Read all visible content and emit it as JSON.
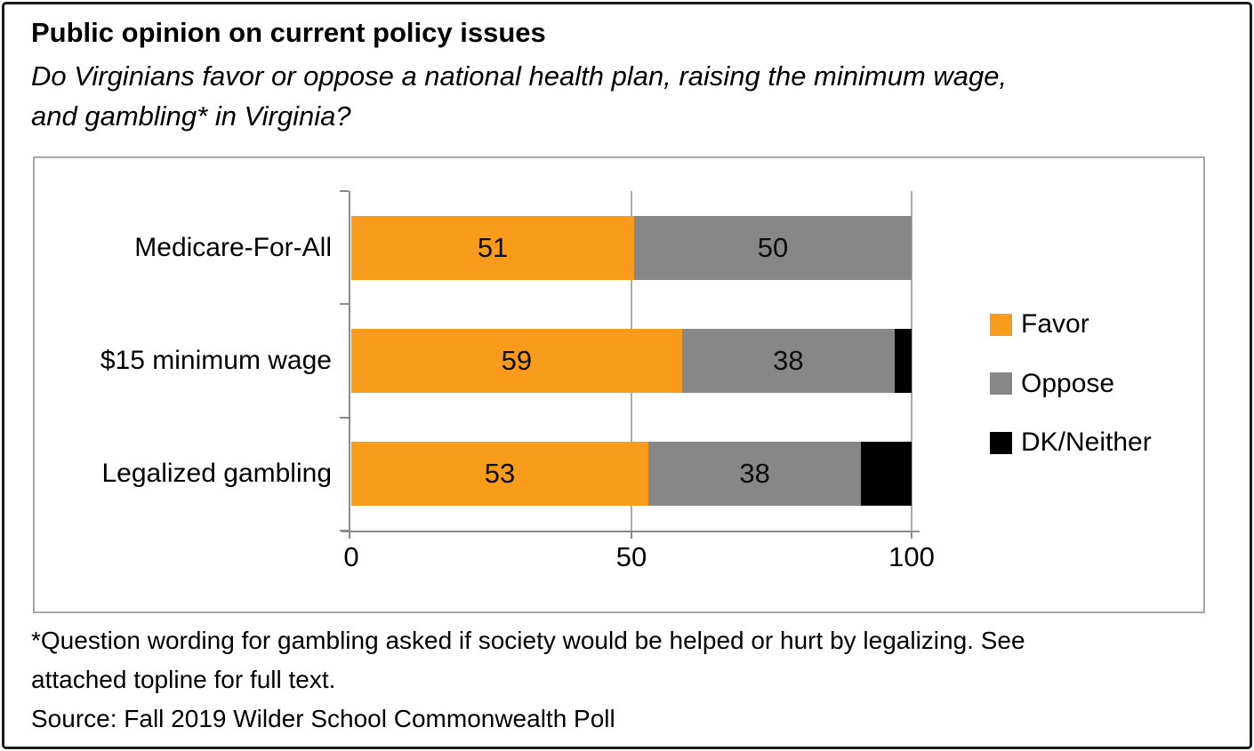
{
  "header": {
    "title": "Public opinion on current policy issues",
    "subtitle_line1": "Do Virginians favor or oppose a national health plan, raising the minimum wage,",
    "subtitle_line2": "and gambling* in Virginia?"
  },
  "chart_data": {
    "type": "bar",
    "orientation": "horizontal",
    "stacked": true,
    "categories": [
      "Medicare-For-All",
      "$15 minimum wage",
      "Legalized gambling"
    ],
    "series": [
      {
        "name": "Favor",
        "color": "#FA9C1B",
        "values": [
          51,
          59,
          53
        ]
      },
      {
        "name": "Oppose",
        "color": "#878787",
        "values": [
          50,
          38,
          38
        ]
      },
      {
        "name": "DK/Neither",
        "color": "#000000",
        "values": [
          0,
          3,
          9
        ]
      }
    ],
    "xlim": [
      0,
      100
    ],
    "x_ticks": [
      0,
      50,
      100
    ],
    "grid": "vertical gridlines at 50 and 100",
    "legend_position": "right",
    "data_label_min_value": 10,
    "axis_color": "#8a8a8a",
    "gridline_color": "#ababab"
  },
  "footnote": {
    "line1": "*Question wording for gambling asked if society would be helped or hurt by legalizing. See",
    "line2": "attached topline for full text.",
    "line3": "Source: Fall 2019 Wilder School Commonwealth Poll"
  }
}
